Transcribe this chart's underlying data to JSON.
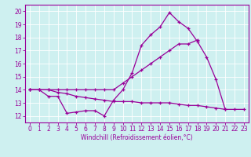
{
  "xlabel": "Windchill (Refroidissement éolien,°C)",
  "x_values": [
    0,
    1,
    2,
    3,
    4,
    5,
    6,
    7,
    8,
    9,
    10,
    11,
    12,
    13,
    14,
    15,
    16,
    17,
    18,
    19,
    20,
    21,
    22,
    23
  ],
  "line1": [
    14,
    14,
    13.5,
    13.5,
    12.2,
    12.3,
    12.4,
    12.4,
    12.0,
    13.2,
    14.0,
    15.3,
    17.4,
    18.2,
    18.8,
    19.9,
    19.2,
    18.7,
    17.7,
    16.5,
    14.8,
    12.5,
    null,
    null
  ],
  "line2": [
    14,
    14,
    14,
    13.8,
    13.7,
    13.5,
    13.4,
    13.3,
    13.2,
    13.1,
    13.1,
    13.1,
    13.0,
    13.0,
    13.0,
    13.0,
    12.9,
    12.8,
    12.8,
    12.7,
    12.6,
    12.5,
    12.5,
    12.5
  ],
  "line3": [
    14,
    14,
    14,
    14,
    14,
    14,
    14,
    14,
    14,
    14,
    14.5,
    15.0,
    15.5,
    16.0,
    16.5,
    17.0,
    17.5,
    17.5,
    17.8,
    null,
    null,
    null,
    null,
    null
  ],
  "ylim": [
    11.5,
    20.5
  ],
  "xlim": [
    -0.5,
    23.5
  ],
  "yticks": [
    12,
    13,
    14,
    15,
    16,
    17,
    18,
    19,
    20
  ],
  "xticks": [
    0,
    1,
    2,
    3,
    4,
    5,
    6,
    7,
    8,
    9,
    10,
    11,
    12,
    13,
    14,
    15,
    16,
    17,
    18,
    19,
    20,
    21,
    22,
    23
  ],
  "line_color": "#990099",
  "bg_color": "#cef0f0",
  "grid_color": "#ffffff",
  "tick_label_fontsize": 5.5,
  "marker": "+",
  "linewidth": 0.9,
  "markersize": 3.0
}
